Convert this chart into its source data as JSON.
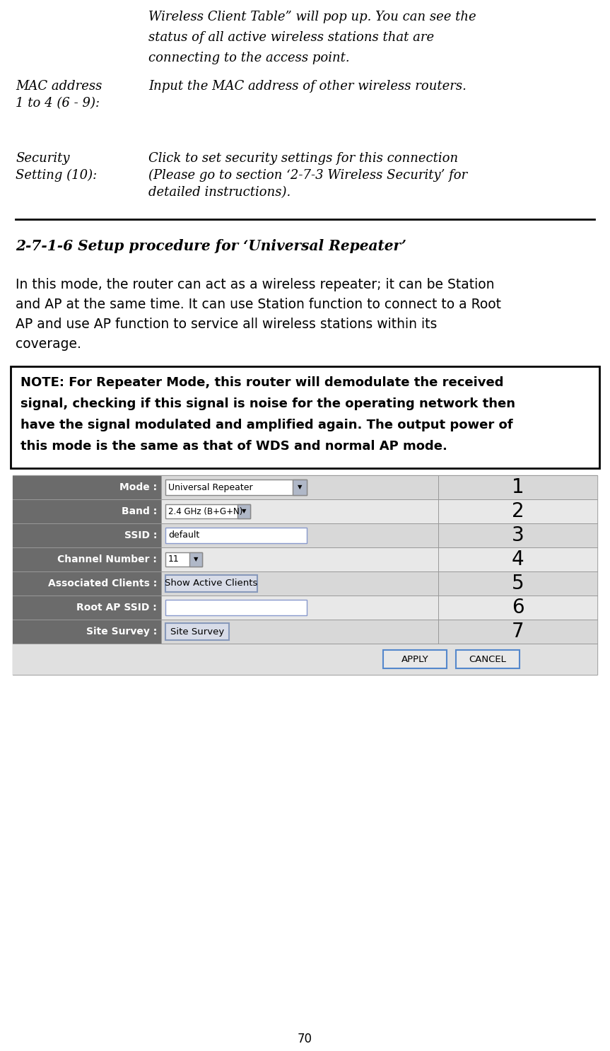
{
  "bg_color": "#ffffff",
  "page_number": "70",
  "top_italic_lines": [
    "Wireless Client Table” will pop up. You can see the",
    "status of all active wireless stations that are",
    "connecting to the access point."
  ],
  "mac_label1": "MAC address",
  "mac_label2": "1 to 4 (6 - 9):",
  "mac_value": "Input the MAC address of other wireless routers.",
  "sec_label1": "Security",
  "sec_label2": "Setting (10):",
  "sec_value1": "Click to set security settings for this connection",
  "sec_value2": "(Please go to section ‘2-7-3 Wireless Security’ for",
  "sec_value3": "detailed instructions).",
  "section_title": "2-7-1-6 Setup procedure for ‘Universal Repeater’",
  "body_lines": [
    "In this mode, the router can act as a wireless repeater; it can be Station",
    "and AP at the same time. It can use Station function to connect to a Root",
    "AP and use AP function to service all wireless stations within its",
    "coverage."
  ],
  "note_lines": [
    "NOTE: For Repeater Mode, this router will demodulate the received",
    "signal, checking if this signal is noise for the operating network then",
    "have the signal modulated and amplified again. The output power of",
    "this mode is the same as that of WDS and normal AP mode."
  ],
  "form_rows": [
    {
      "label": "Mode :",
      "value": "Universal Repeater",
      "type": "dropdown_large",
      "num": "1"
    },
    {
      "label": "Band :",
      "value": "2.4 GHz (B+G+N)",
      "type": "dropdown_small",
      "num": "2"
    },
    {
      "label": "SSID :",
      "value": "default",
      "type": "input_large",
      "num": "3"
    },
    {
      "label": "Channel Number :",
      "value": "11",
      "type": "dropdown_tiny",
      "num": "4"
    },
    {
      "label": "Associated Clients :",
      "value": "Show Active Clients",
      "type": "button",
      "num": "5"
    },
    {
      "label": "Root AP SSID :",
      "value": "",
      "type": "input_large",
      "num": "6"
    },
    {
      "label": "Site Survey :",
      "value": "Site Survey",
      "type": "button_small",
      "num": "7"
    }
  ],
  "label_bg": "#6b6b6b",
  "label_fg": "#ffffff",
  "row_bg_odd": "#d8d8d8",
  "row_bg_even": "#e8e8e8",
  "form_outer_bg": "#d0d0d0",
  "note_bg": "#ffffff",
  "note_border": "#000000",
  "divider_color": "#000000",
  "apply_bg": "#e8e8e8",
  "apply_border": "#5588cc"
}
